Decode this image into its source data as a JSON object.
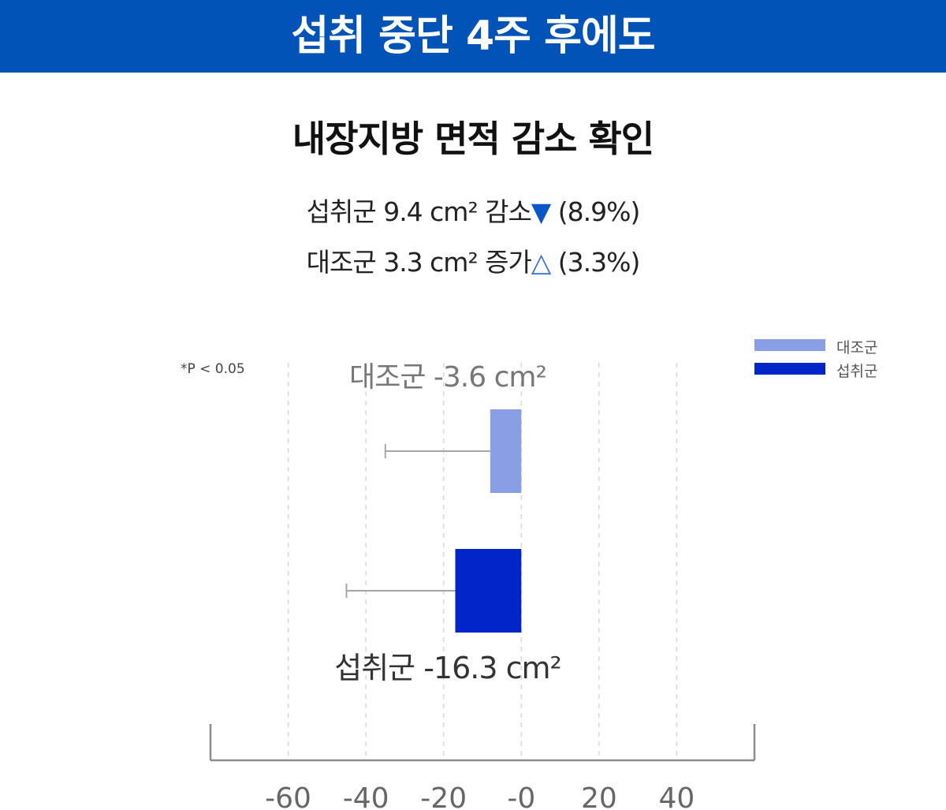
{
  "header": {
    "banner": "섭취 중단 4주 후에도"
  },
  "subtitle": "내장지방 면적 감소 확인",
  "stats": {
    "line1_text": "섭취군 9.4 cm² 감소",
    "line1_icon": "▼",
    "line1_pct": " (8.9%)",
    "line2_text": "대조군 3.3 cm² 증가",
    "line2_icon": "△",
    "line2_pct": " (3.3%)"
  },
  "note": "*P < 0.05",
  "legend": [
    {
      "label": "대조군",
      "color": "#8a9ee6"
    },
    {
      "label": "섭취군",
      "color": "#0026c9"
    }
  ],
  "chart_data": {
    "type": "bar",
    "orientation": "horizontal",
    "categories": [
      "대조군",
      "섭취군"
    ],
    "values": [
      -3.6,
      -16.3
    ],
    "bar_ranges": [
      [
        -8,
        0
      ],
      [
        -17,
        0
      ]
    ],
    "error_bar_ends": [
      -35,
      -45
    ],
    "colors": [
      "#8a9ee6",
      "#0026c9"
    ],
    "data_labels": [
      "대조군 -3.6 cm²",
      "섭취군 -16.3 cm²"
    ],
    "x_ticks": [
      -60,
      -40,
      -20,
      0,
      20,
      40
    ],
    "x_tick_labels": [
      "-60",
      "-40",
      "-20",
      "-0",
      "20",
      "40"
    ],
    "xlim": [
      -80,
      60
    ],
    "grid": true,
    "legend_position": "top-right"
  }
}
